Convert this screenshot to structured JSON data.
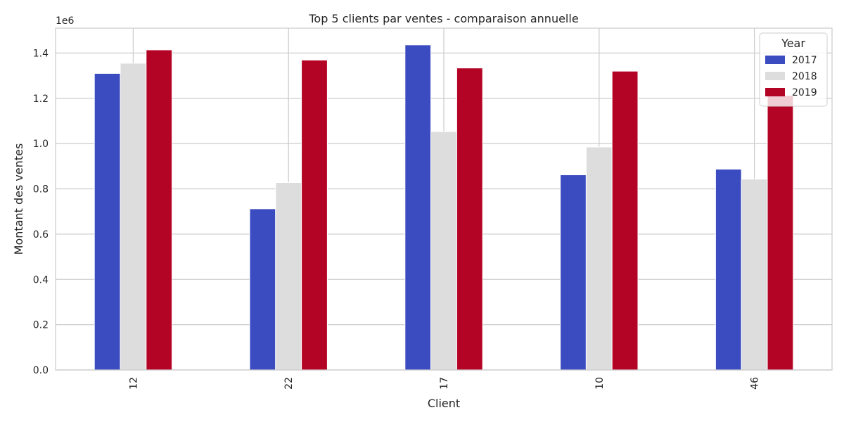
{
  "chart_data": {
    "type": "bar",
    "title": "Top 5 clients par ventes - comparaison annuelle",
    "xlabel": "Client",
    "ylabel": "Montant des ventes",
    "y_offset_label": "1e6",
    "categories": [
      "12",
      "22",
      "17",
      "10",
      "46"
    ],
    "series": [
      {
        "name": "2017",
        "color": "#3b4cc0",
        "values": [
          1310000,
          712000,
          1436000,
          862000,
          887000
        ]
      },
      {
        "name": "2018",
        "color": "#dddddd",
        "values": [
          1355000,
          828000,
          1053000,
          985000,
          843000
        ]
      },
      {
        "name": "2019",
        "color": "#b40426",
        "values": [
          1414000,
          1369000,
          1334000,
          1320000,
          1213000
        ]
      }
    ],
    "ylim": [
      0,
      1510000
    ],
    "yticks": [
      0,
      200000,
      400000,
      600000,
      800000,
      1000000,
      1200000,
      1400000
    ],
    "ytick_labels": [
      "0.0",
      "0.2",
      "0.4",
      "0.6",
      "0.8",
      "1.0",
      "1.2",
      "1.4"
    ],
    "grid": true,
    "legend": {
      "title": "Year",
      "placement": "top-right"
    }
  }
}
